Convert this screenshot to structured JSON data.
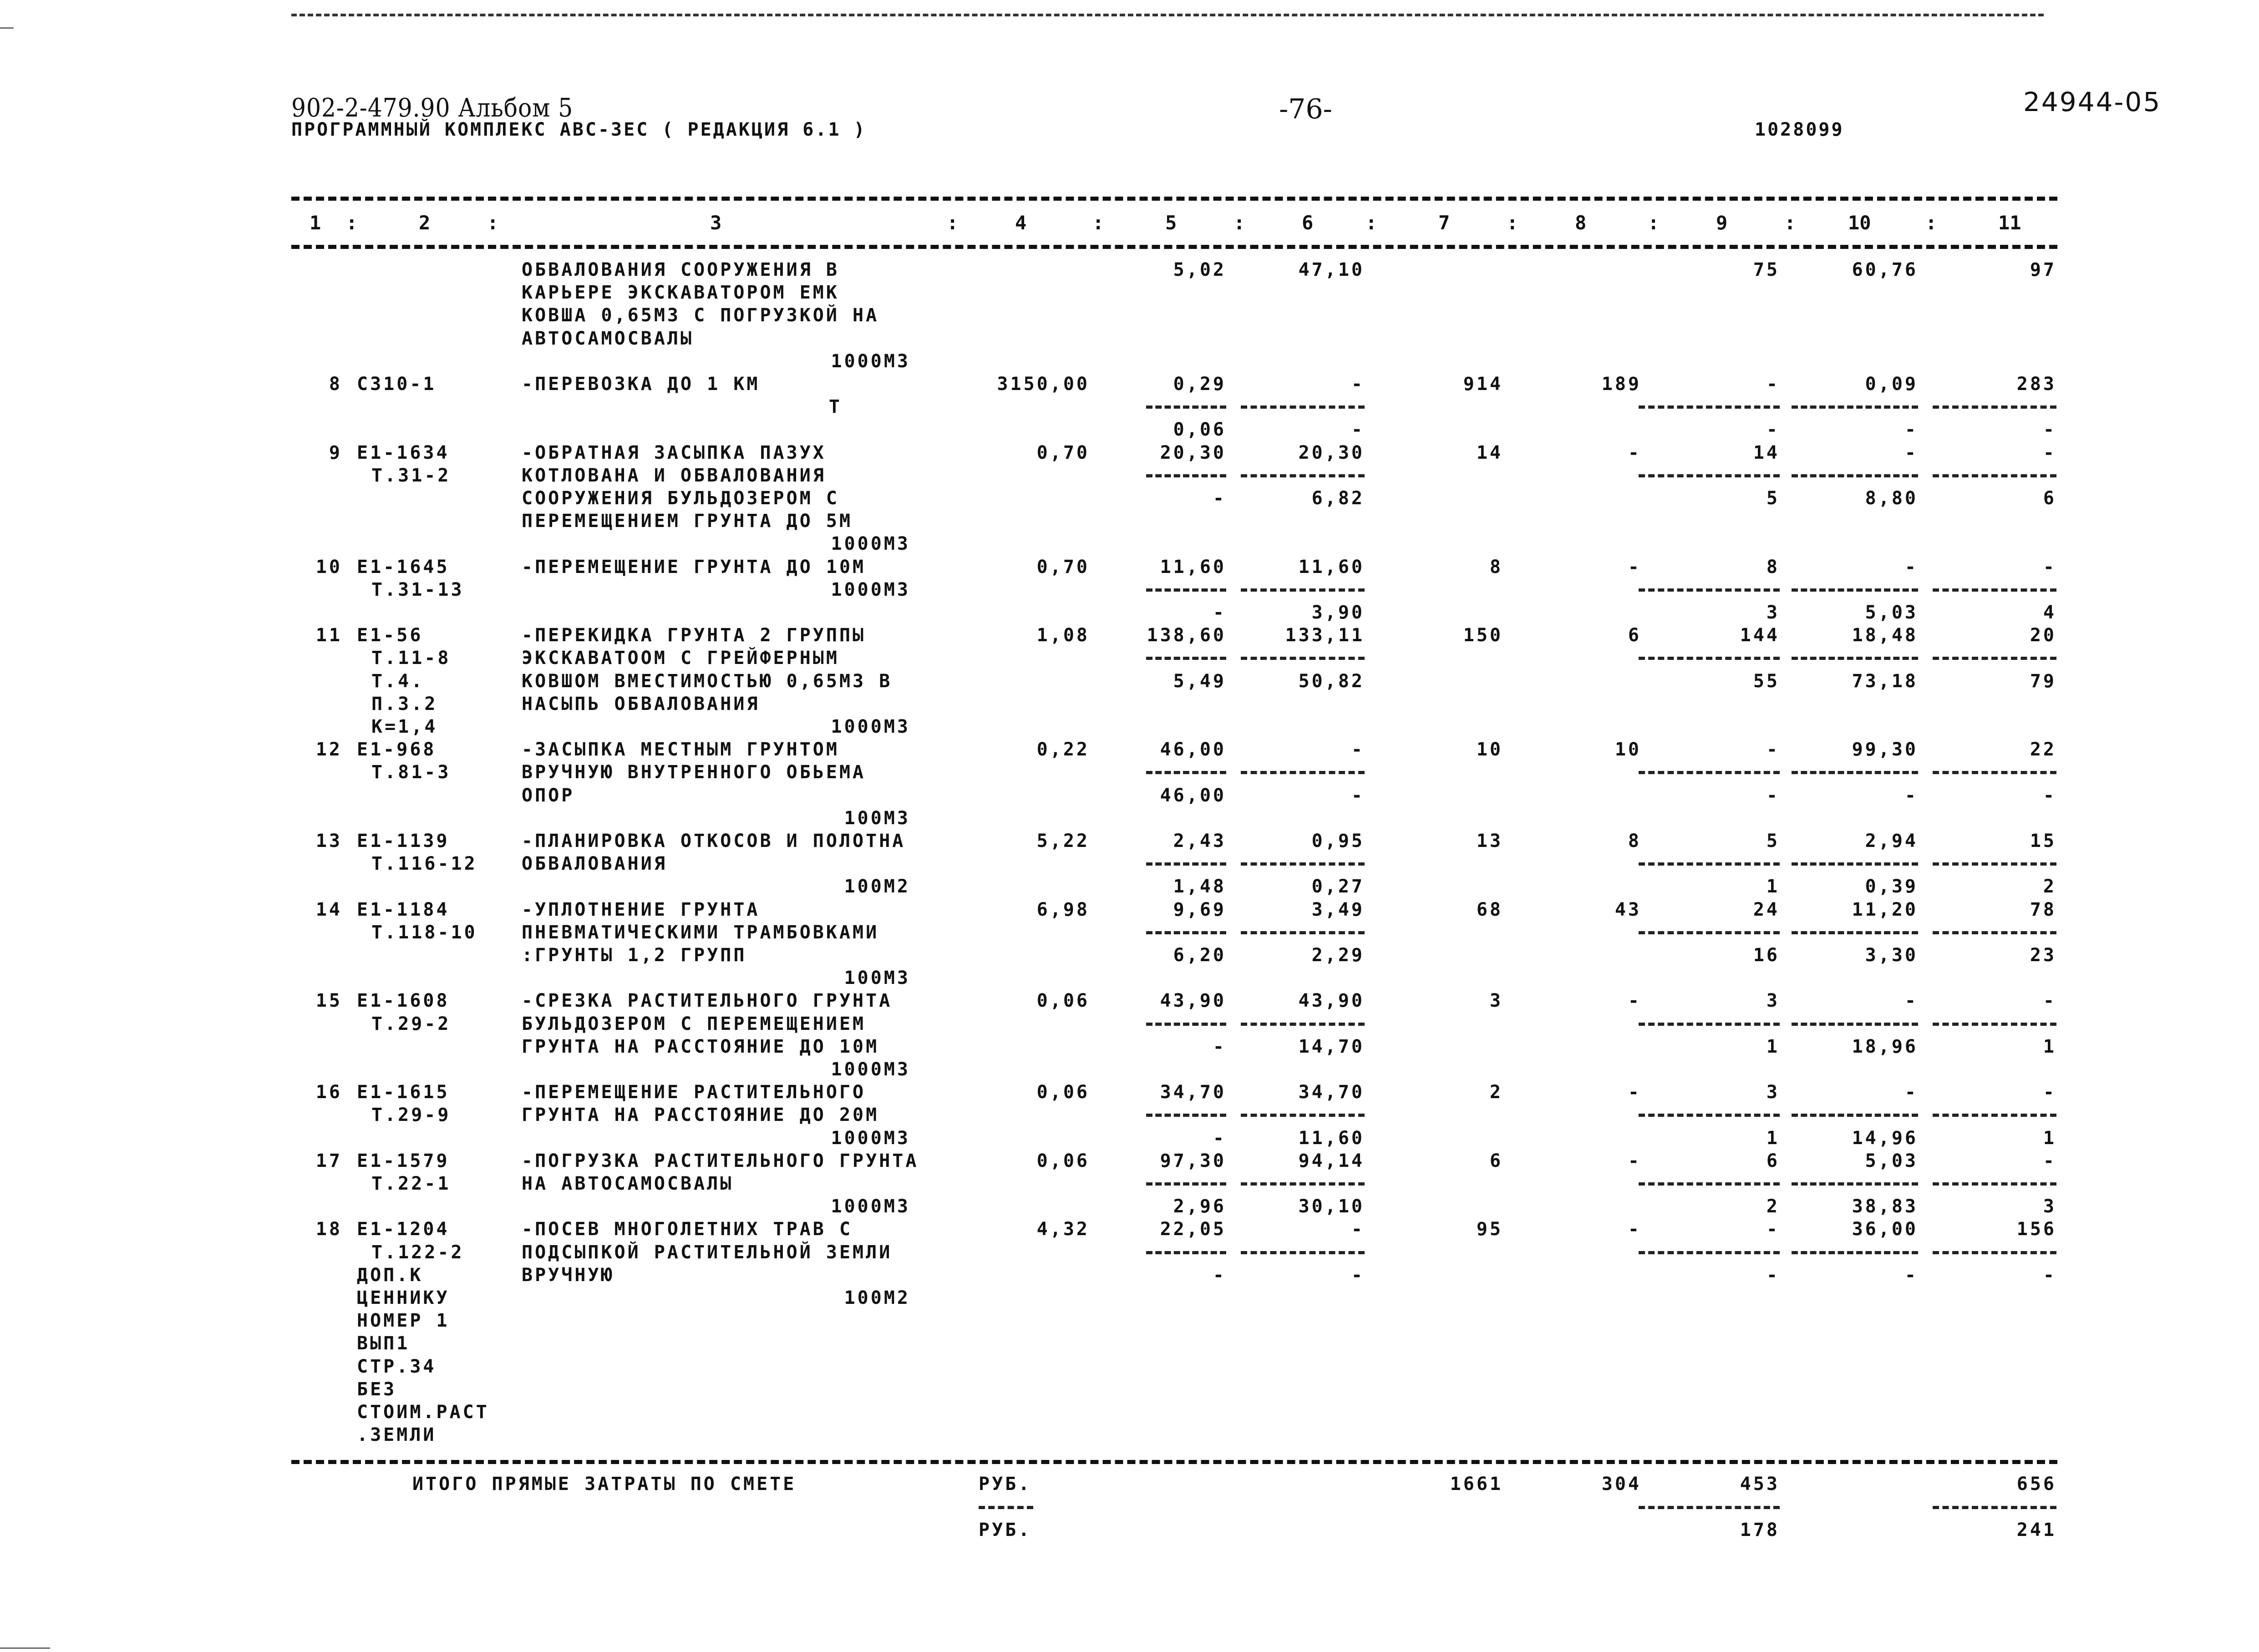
{
  "header": {
    "project": "902-2-479.90  Альбом 5",
    "program": "ПРОГРАММНЫЙ КОМПЛЕКС АВС-3ЕС   ( РЕДАКЦИЯ  6.1 )",
    "page": "-76-",
    "doc_number": "1028099",
    "archive_number": "24944-05"
  },
  "columns": [
    "1",
    "2",
    "3",
    "4",
    "5",
    "6",
    "7",
    "8",
    "9",
    "10",
    "11"
  ],
  "column_separator": ":",
  "rows": [
    {
      "num": "",
      "code": [],
      "desc": [
        "ОБВАЛОВАНИЯ СООРУЖЕНИЯ В",
        "КАРЬЕРЕ ЭКСКАВАТОРОМ ЕМК",
        "КОВША 0,65М3 С ПОГРУЗКОЙ НА",
        "АВТОСАМОСВАЛЫ"
      ],
      "unit": "1000М3",
      "c4": "",
      "upper": {
        "c5": "5,02",
        "c6": "47,10",
        "c7": "",
        "c8": "",
        "c9": "75",
        "c10": "60,76",
        "c11": "97"
      },
      "lower": null
    },
    {
      "num": "8",
      "code": [
        "С310-1"
      ],
      "desc": [
        "-ПЕРЕВОЗКА ДО 1 КМ"
      ],
      "unit": "Т",
      "c4": "3150,00",
      "upper": {
        "c5": "0,29",
        "c6": "-",
        "c7": "914",
        "c8": "189",
        "c9": "-",
        "c10": "0,09",
        "c11": "283"
      },
      "lower": {
        "c5": "0,06",
        "c6": "-",
        "c9": "-",
        "c10": "-",
        "c11": "-"
      }
    },
    {
      "num": "9",
      "code": [
        "Е1-1634",
        "Т.31-2"
      ],
      "desc": [
        "-ОБРАТНАЯ ЗАСЫПКА ПАЗУХ",
        "КОТЛОВАНА И ОБВАЛОВАНИЯ",
        "СООРУЖЕНИЯ БУЛЬДОЗЕРОМ С",
        "ПЕРЕМЕЩЕНИЕМ ГРУНТА ДО 5М"
      ],
      "unit": "1000М3",
      "c4": "0,70",
      "upper": {
        "c5": "20,30",
        "c6": "20,30",
        "c7": "14",
        "c8": "-",
        "c9": "14",
        "c10": "-",
        "c11": "-"
      },
      "lower": {
        "c5": "-",
        "c6": "6,82",
        "c9": "5",
        "c10": "8,80",
        "c11": "6"
      }
    },
    {
      "num": "10",
      "code": [
        "Е1-1645",
        "Т.31-13"
      ],
      "desc": [
        "-ПЕРЕМЕЩЕНИЕ ГРУНТА ДО 10М"
      ],
      "unit": "1000М3",
      "c4": "0,70",
      "upper": {
        "c5": "11,60",
        "c6": "11,60",
        "c7": "8",
        "c8": "-",
        "c9": "8",
        "c10": "-",
        "c11": "-"
      },
      "lower": {
        "c5": "-",
        "c6": "3,90",
        "c9": "3",
        "c10": "5,03",
        "c11": "4"
      }
    },
    {
      "num": "11",
      "code": [
        "Е1-56",
        "Т.11-8",
        "Т.4.",
        "П.3.2",
        "К=1,4"
      ],
      "desc": [
        "-ПЕРЕКИДКА ГРУНТА 2 ГРУППЫ",
        "ЭКСКАВАТООМ С ГРЕЙФЕРНЫМ",
        "КОВШОМ ВМЕСТИМОСТЬЮ 0,65М3 В",
        "НАСЫПЬ ОБВАЛОВАНИЯ"
      ],
      "unit": "1000М3",
      "c4": "1,08",
      "upper": {
        "c5": "138,60",
        "c6": "133,11",
        "c7": "150",
        "c8": "6",
        "c9": "144",
        "c10": "18,48",
        "c11": "20"
      },
      "lower": {
        "c5": "5,49",
        "c6": "50,82",
        "c9": "55",
        "c10": "73,18",
        "c11": "79"
      }
    },
    {
      "num": "12",
      "code": [
        "Е1-968",
        "Т.81-3"
      ],
      "desc": [
        "-ЗАСЫПКА МЕСТНЫМ ГРУНТОМ",
        "ВРУЧНУЮ ВНУТРЕННОГО ОБЬЕМА",
        "ОПОР"
      ],
      "unit": "100М3",
      "c4": "0,22",
      "upper": {
        "c5": "46,00",
        "c6": "-",
        "c7": "10",
        "c8": "10",
        "c9": "-",
        "c10": "99,30",
        "c11": "22"
      },
      "lower": {
        "c5": "46,00",
        "c6": "-",
        "c9": "-",
        "c10": "-",
        "c11": "-"
      }
    },
    {
      "num": "13",
      "code": [
        "Е1-1139",
        "Т.116-12"
      ],
      "desc": [
        "-ПЛАНИРОВКА ОТКОСОВ И ПОЛОТНА",
        "ОБВАЛОВАНИЯ"
      ],
      "unit": "100М2",
      "c4": "5,22",
      "upper": {
        "c5": "2,43",
        "c6": "0,95",
        "c7": "13",
        "c8": "8",
        "c9": "5",
        "c10": "2,94",
        "c11": "15"
      },
      "lower": {
        "c5": "1,48",
        "c6": "0,27",
        "c9": "1",
        "c10": "0,39",
        "c11": "2"
      }
    },
    {
      "num": "14",
      "code": [
        "Е1-1184",
        "Т.118-10"
      ],
      "desc": [
        "-УПЛОТНЕНИЕ ГРУНТА",
        "ПНЕВМАТИЧЕСКИМИ ТРАМБОВКАМИ",
        ":ГРУНТЫ 1,2 ГРУПП"
      ],
      "unit": "100М3",
      "c4": "6,98",
      "upper": {
        "c5": "9,69",
        "c6": "3,49",
        "c7": "68",
        "c8": "43",
        "c9": "24",
        "c10": "11,20",
        "c11": "78"
      },
      "lower": {
        "c5": "6,20",
        "c6": "2,29",
        "c9": "16",
        "c10": "3,30",
        "c11": "23"
      }
    },
    {
      "num": "15",
      "code": [
        "Е1-1608",
        "Т.29-2"
      ],
      "desc": [
        "-СРЕЗКА РАСТИТЕЛЬНОГО ГРУНТА",
        "БУЛЬДОЗЕРОМ С ПЕРЕМЕЩЕНИЕМ",
        "ГРУНТА НА РАССТОЯНИЕ ДО 10М"
      ],
      "unit": "1000М3",
      "c4": "0,06",
      "upper": {
        "c5": "43,90",
        "c6": "43,90",
        "c7": "3",
        "c8": "-",
        "c9": "3",
        "c10": "-",
        "c11": "-"
      },
      "lower": {
        "c5": "-",
        "c6": "14,70",
        "c9": "1",
        "c10": "18,96",
        "c11": "1"
      }
    },
    {
      "num": "16",
      "code": [
        "Е1-1615",
        "Т.29-9"
      ],
      "desc": [
        "-ПЕРЕМЕЩЕНИЕ РАСТИТЕЛЬНОГО",
        "ГРУНТА НА РАССТОЯНИЕ ДО 20М"
      ],
      "unit": "1000М3",
      "c4": "0,06",
      "upper": {
        "c5": "34,70",
        "c6": "34,70",
        "c7": "2",
        "c8": "-",
        "c9": "3",
        "c10": "-",
        "c11": "-"
      },
      "lower": {
        "c5": "-",
        "c6": "11,60",
        "c9": "1",
        "c10": "14,96",
        "c11": "1"
      }
    },
    {
      "num": "17",
      "code": [
        "Е1-1579",
        "Т.22-1"
      ],
      "desc": [
        "-ПОГРУЗКА РАСТИТЕЛЬНОГО ГРУНТА",
        "НА АВТОСАМОСВАЛЫ"
      ],
      "unit": "1000М3",
      "c4": "0,06",
      "upper": {
        "c5": "97,30",
        "c6": "94,14",
        "c7": "6",
        "c8": "-",
        "c9": "6",
        "c10": "5,03",
        "c11": "-"
      },
      "lower": {
        "c5": "2,96",
        "c6": "30,10",
        "c9": "2",
        "c10": "38,83",
        "c11": "3"
      }
    },
    {
      "num": "18",
      "code": [
        "Е1-1204",
        "Т.122-2",
        "ДОП.К",
        "ЦЕННИКУ",
        "НОМЕР 1",
        "ВЫП1",
        "СТР.34",
        "БЕЗ",
        "СТОИМ.РАСТ",
        ".ЗЕМЛИ"
      ],
      "desc": [
        "-ПОСЕВ МНОГОЛЕТНИХ ТРАВ С",
        "ПОДСЫПКОЙ РАСТИТЕЛЬНОЙ ЗЕМЛИ",
        "ВРУЧНУЮ"
      ],
      "unit": "100М2",
      "c4": "4,32",
      "upper": {
        "c5": "22,05",
        "c6": "-",
        "c7": "95",
        "c8": "-",
        "c9": "-",
        "c10": "36,00",
        "c11": "156"
      },
      "lower": {
        "c5": "-",
        "c6": "-",
        "c9": "-",
        "c10": "-",
        "c11": "-"
      }
    }
  ],
  "totals": {
    "label": "ИТОГО ПРЯМЫЕ ЗАТРАТЫ ПО СМЕТЕ",
    "currency": "РУБ.",
    "upper": {
      "c7": "1661",
      "c8": "304",
      "c9": "453",
      "c11": "656"
    },
    "lower": {
      "c9": "178",
      "c11": "241"
    }
  }
}
